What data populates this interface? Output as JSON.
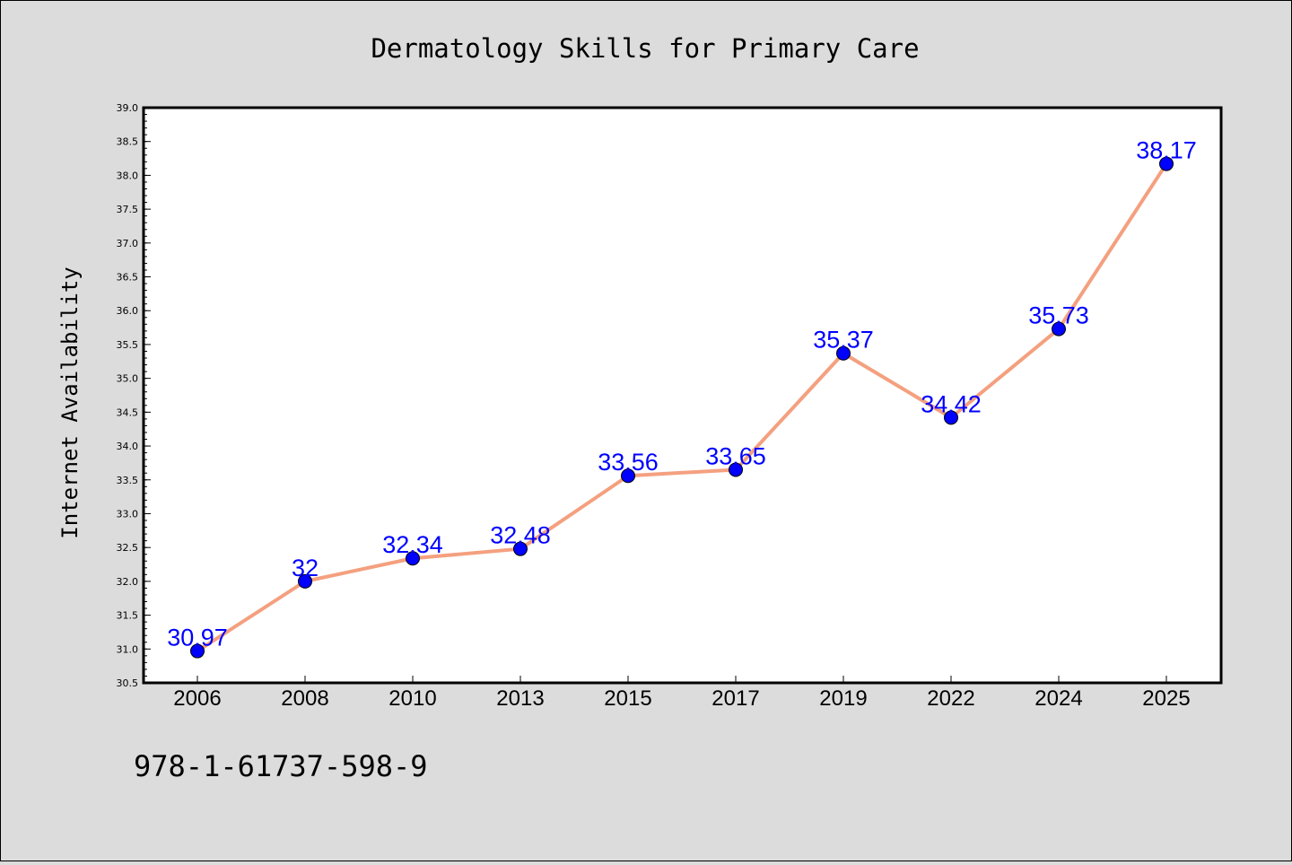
{
  "chart_data": {
    "type": "line",
    "title": "Dermatology Skills for Primary Care",
    "xlabel": "",
    "ylabel": "Internet Availability",
    "categories": [
      "2006",
      "2008",
      "2010",
      "2013",
      "2015",
      "2017",
      "2019",
      "2022",
      "2024",
      "2025"
    ],
    "series": [
      {
        "values": [
          30.97,
          32,
          32.34,
          32.48,
          33.56,
          33.65,
          35.37,
          34.42,
          35.73,
          38.17
        ],
        "data_labels": [
          "30.97",
          "32",
          "32.34",
          "32.48",
          "33.56",
          "33.65",
          "35.37",
          "34.42",
          "35.73",
          "38.17"
        ]
      }
    ],
    "ylim": [
      30.5,
      39.0
    ],
    "yticks": [
      "30.5",
      "31.0",
      "31.5",
      "32.0",
      "32.5",
      "33.0",
      "33.5",
      "34.0",
      "34.5",
      "35.0",
      "35.5",
      "36.0",
      "36.5",
      "37.0",
      "37.5",
      "38.0",
      "38.5",
      "39.0"
    ],
    "grid": false,
    "line_color": "#f4a07f",
    "marker_color": "#0000ff",
    "label_color": "#0000ff"
  },
  "footer": {
    "isbn": "978-1-61737-598-9"
  }
}
